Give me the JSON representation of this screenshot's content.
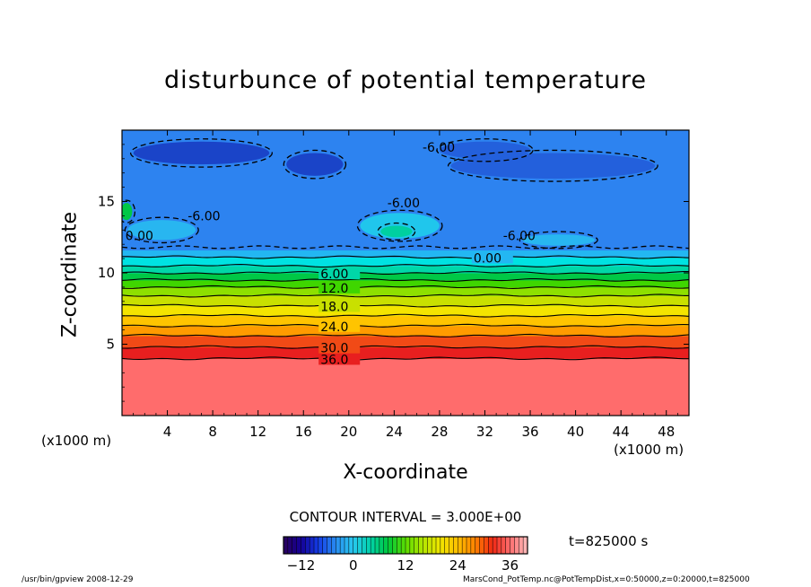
{
  "chart_data": {
    "type": "heatmap",
    "title": "disturbunce of potential temperature",
    "xlabel": "X-coordinate",
    "ylabel": "Z-coordinate",
    "x_unit": "(x1000 m)",
    "xlim": [
      0,
      50
    ],
    "ylim": [
      0,
      20
    ],
    "x_ticks": [
      4,
      8,
      12,
      16,
      20,
      24,
      28,
      32,
      36,
      40,
      44,
      48
    ],
    "y_ticks": [
      5,
      10,
      15
    ],
    "contour_interval_text": "CONTOUR INTERVAL = 3.000E+00",
    "time_text": "t=825000 s",
    "colorbar": {
      "range": [
        -16,
        40
      ],
      "ticks": [
        -12,
        0,
        12,
        24,
        36
      ]
    },
    "bands": [
      {
        "z0": 0,
        "z1": 4.0,
        "value": 38,
        "color": "#ff6c6c"
      },
      {
        "z0": 4.0,
        "z1": 4.8,
        "value": 33,
        "color": "#e81f1f"
      },
      {
        "z0": 4.8,
        "z1": 5.6,
        "value": 30,
        "color": "#f14a16"
      },
      {
        "z0": 5.6,
        "z1": 6.3,
        "value": 27,
        "color": "#ff9b00"
      },
      {
        "z0": 6.3,
        "z1": 7.0,
        "value": 24,
        "color": "#ffc400"
      },
      {
        "z0": 7.0,
        "z1": 7.7,
        "value": 21,
        "color": "#f4e400"
      },
      {
        "z0": 7.7,
        "z1": 8.4,
        "value": 18,
        "color": "#c9e000"
      },
      {
        "z0": 8.4,
        "z1": 9.0,
        "value": 15,
        "color": "#8ee000"
      },
      {
        "z0": 9.0,
        "z1": 9.5,
        "value": 12,
        "color": "#3fd600"
      },
      {
        "z0": 9.5,
        "z1": 10.0,
        "value": 9,
        "color": "#00c846"
      },
      {
        "z0": 10.0,
        "z1": 10.5,
        "value": 6,
        "color": "#00d7a8"
      },
      {
        "z0": 10.5,
        "z1": 11.1,
        "value": 3,
        "color": "#00e2e2"
      },
      {
        "z0": 11.1,
        "z1": 11.6,
        "value": 0,
        "color": "#23b7f2"
      },
      {
        "z0": 11.6,
        "z1": 20.0,
        "value": -3,
        "color": "#2d83f0"
      }
    ],
    "contour_lines": [
      {
        "z": 4.0,
        "label": "36.0",
        "label_x": 17.5
      },
      {
        "z": 4.8,
        "label": "30.0",
        "label_x": 17.5
      },
      {
        "z": 5.6,
        "label": "",
        "label_x": 0
      },
      {
        "z": 6.3,
        "label": "24.0",
        "label_x": 17.5
      },
      {
        "z": 7.0,
        "label": "",
        "label_x": 0
      },
      {
        "z": 7.7,
        "label": "18.0",
        "label_x": 17.5
      },
      {
        "z": 8.4,
        "label": "",
        "label_x": 0
      },
      {
        "z": 9.0,
        "label": "12.0",
        "label_x": 17.5
      },
      {
        "z": 9.5,
        "label": "",
        "label_x": 0
      },
      {
        "z": 10.0,
        "label": "6.00",
        "label_x": 17.5
      },
      {
        "z": 10.5,
        "label": "",
        "label_x": 0
      },
      {
        "z": 11.1,
        "label": "0.00",
        "label_x": 31.0
      }
    ],
    "upper_labels": [
      {
        "x": 5.8,
        "z": 14.0,
        "text": "-6.00"
      },
      {
        "x": 0.3,
        "z": 12.6,
        "text": "0.00"
      },
      {
        "x": 23.4,
        "z": 14.9,
        "text": "-6.00"
      },
      {
        "x": 26.5,
        "z": 18.8,
        "text": "-6.00"
      },
      {
        "x": 33.6,
        "z": 12.6,
        "text": "-6.00"
      }
    ],
    "cold_patches": [
      {
        "cx": 7,
        "cy": 18.4,
        "rx": 6,
        "ry": 0.8,
        "color": "#1a44c8"
      },
      {
        "cx": 17,
        "cy": 17.6,
        "rx": 2.5,
        "ry": 0.8,
        "color": "#1a44c8"
      },
      {
        "cx": 38,
        "cy": 17.5,
        "rx": 9,
        "ry": 0.9,
        "color": "#2360dc"
      },
      {
        "cx": 32,
        "cy": 18.6,
        "rx": 4,
        "ry": 0.6,
        "color": "#2360dc"
      }
    ],
    "warm_patches": [
      {
        "cx": 3.5,
        "cy": 13.0,
        "rx": 3.0,
        "ry": 0.7,
        "color": "#28b6f0"
      },
      {
        "cx": 24.5,
        "cy": 13.3,
        "rx": 3.5,
        "ry": 0.9,
        "color": "#20c6ec"
      },
      {
        "cx": 24.2,
        "cy": 12.9,
        "rx": 1.4,
        "ry": 0.4,
        "color": "#00d0a0"
      },
      {
        "cx": 38.5,
        "cy": 12.3,
        "rx": 3.2,
        "ry": 0.4,
        "color": "#28b6f0"
      },
      {
        "cx": 0.4,
        "cy": 14.3,
        "rx": 0.5,
        "ry": 0.6,
        "color": "#00c846"
      }
    ]
  },
  "footer": {
    "left": "/usr/bin/gpview   2008-12-29",
    "right": "MarsCond_PotTemp.nc@PotTempDist,x=0:50000,z=0:20000,t=825000"
  }
}
